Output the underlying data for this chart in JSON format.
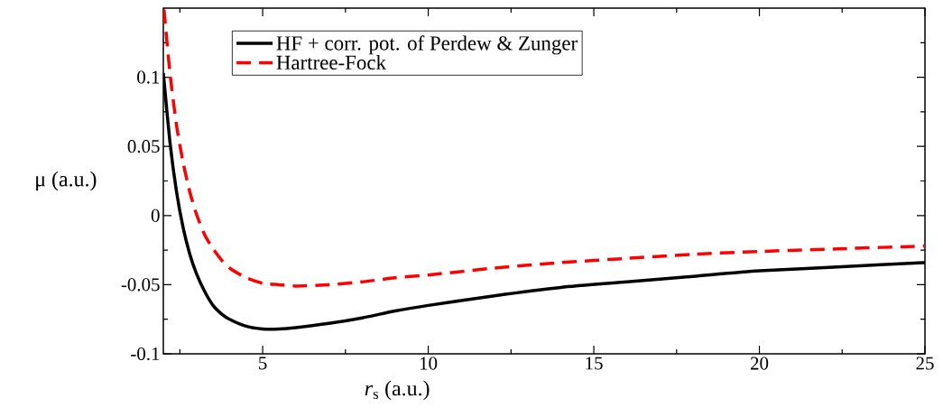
{
  "chart_data": {
    "type": "line",
    "xlabel": "*r*$_{s}$ (a.u.)",
    "ylabel": "μ (a.u.)",
    "xlim": [
      2,
      25
    ],
    "ylim": [
      -0.1,
      0.15
    ],
    "xticks": [
      {
        "value": 2.5,
        "label": null
      },
      5,
      {
        "value": 7.5,
        "label": null
      },
      10,
      {
        "value": 12.5,
        "label": null
      },
      15,
      {
        "value": 17.5,
        "label": null
      },
      20,
      {
        "value": 22.5,
        "label": null
      },
      25
    ],
    "yticks": [
      -0.1,
      {
        "value": -0.075,
        "label": null
      },
      -0.05,
      {
        "value": -0.025,
        "label": null
      },
      0,
      {
        "value": 0.025,
        "label": null
      },
      0.05,
      {
        "value": 0.075,
        "label": null
      },
      0.1,
      {
        "value": 0.125,
        "label": null
      }
    ],
    "grid": false,
    "legend": "top left",
    "marker": "none",
    "x": [
      2,
      2.2,
      2.4,
      2.6,
      2.8,
      3,
      3.25,
      3.5,
      3.75,
      4,
      4.5,
      5,
      5.5,
      6,
      7,
      8,
      9,
      10,
      12,
      14,
      16,
      18,
      20,
      22.5,
      25
    ],
    "series": [
      {
        "name": "HF + corr. pot. of Perdew & Zunger",
        "color": "#000000",
        "line_style": "solid",
        "values": [
          0.103,
          0.053,
          0.017,
          -0.009,
          -0.028,
          -0.042,
          -0.055,
          -0.065,
          -0.071,
          -0.075,
          -0.08,
          -0.082,
          -0.082,
          -0.081,
          -0.078,
          -0.074,
          -0.069,
          -0.065,
          -0.058,
          -0.052,
          -0.048,
          -0.044,
          -0.04,
          -0.037,
          -0.034
        ]
      },
      {
        "name": "Hartree-Fock",
        "color": "#ff0000",
        "line_style": "dashed",
        "x": [
          2.02,
          2.2,
          2.4,
          2.6,
          2.8,
          3,
          3.25,
          3.5,
          3.75,
          4,
          4.5,
          5,
          5.5,
          6,
          7,
          8,
          9,
          10,
          12,
          14,
          16,
          18,
          20,
          22.5,
          25
        ],
        "values": [
          0.149,
          0.103,
          0.065,
          0.038,
          0.017,
          0.001,
          -0.014,
          -0.024,
          -0.032,
          -0.038,
          -0.045,
          -0.049,
          -0.05,
          -0.051,
          -0.05,
          -0.048,
          -0.045,
          -0.043,
          -0.038,
          -0.034,
          -0.031,
          -0.028,
          -0.026,
          -0.024,
          -0.022
        ]
      }
    ]
  }
}
